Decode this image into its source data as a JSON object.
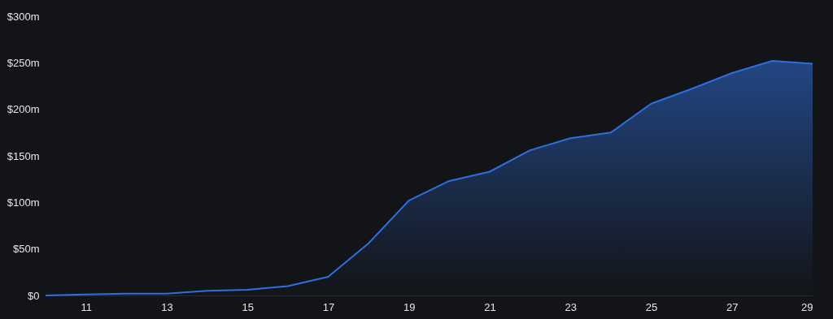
{
  "chart_data": {
    "type": "area",
    "x": [
      10,
      11,
      12,
      13,
      14,
      15,
      16,
      17,
      18,
      19,
      20,
      21,
      22,
      23,
      24,
      25,
      26,
      27,
      28,
      29
    ],
    "series": [
      {
        "color": "#2f6fdc",
        "values": [
          0,
          1,
          2,
          2,
          5,
          6,
          10,
          20,
          56,
          102,
          123,
          133,
          156,
          169,
          175,
          206,
          222,
          239,
          252,
          249
        ]
      }
    ],
    "xlim": [
      10,
      29
    ],
    "xticks": [
      11,
      13,
      15,
      17,
      19,
      21,
      23,
      25,
      27,
      29
    ],
    "ylim": [
      0,
      300
    ],
    "yticks": [
      {
        "value": 0,
        "label": "$0"
      },
      {
        "value": 50,
        "label": "$50m"
      },
      {
        "value": 100,
        "label": "$100m"
      },
      {
        "value": 150,
        "label": "$150m"
      },
      {
        "value": 200,
        "label": "$200m"
      },
      {
        "value": 250,
        "label": "$250m"
      },
      {
        "value": 300,
        "label": "$300m"
      }
    ],
    "grid": false
  }
}
